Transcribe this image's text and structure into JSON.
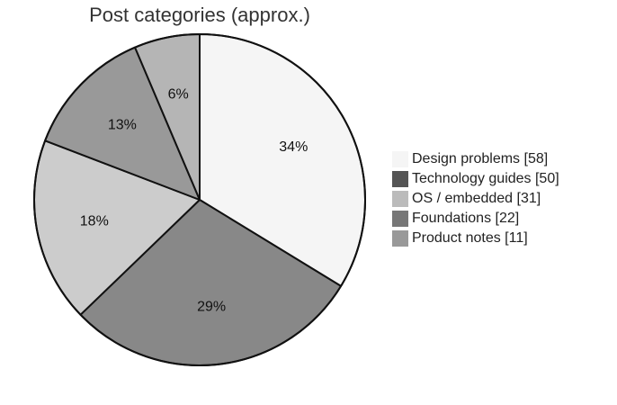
{
  "chart_data": {
    "type": "pie",
    "title": "Post categories (approx.)",
    "start_angle_deg": 0,
    "direction": "clockwise",
    "slices": [
      {
        "label": "Design problems",
        "value": 58,
        "pct_label": "34%",
        "legend": "Design problems [58]",
        "color": "#f5f5f5"
      },
      {
        "label": "Technology guides",
        "value": 50,
        "pct_label": "29%",
        "legend": "Technology guides [50]",
        "color": "#888888",
        "legend_color": "#555555"
      },
      {
        "label": "OS / embedded",
        "value": 31,
        "pct_label": "18%",
        "legend": "OS / embedded [31]",
        "color": "#cccccc",
        "legend_color": "#bbbbbb"
      },
      {
        "label": "Foundations",
        "value": 22,
        "pct_label": "13%",
        "legend": "Foundations [22]",
        "color": "#999999",
        "legend_color": "#777777"
      },
      {
        "label": "Product notes",
        "value": 11,
        "pct_label": "6%",
        "legend": "Product notes [11]",
        "color": "#b5b5b5",
        "legend_color": "#999999"
      }
    ],
    "legend_position": "right"
  }
}
